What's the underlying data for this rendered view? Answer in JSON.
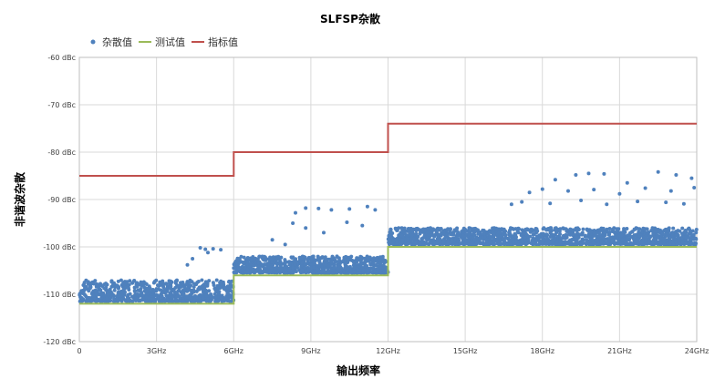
{
  "chart_data": {
    "type": "scatter",
    "title": "SLFSP杂散",
    "xlabel": "输出频率",
    "ylabel": "非谐波杂散",
    "xlim": [
      0,
      24
    ],
    "ylim": [
      -120,
      -60
    ],
    "x_ticks": [
      0,
      3,
      6,
      9,
      12,
      15,
      18,
      21,
      24
    ],
    "x_tick_labels": [
      "0",
      "3GHz",
      "6GHz",
      "9GHz",
      "12GHz",
      "15GHz",
      "18GHz",
      "21GHz",
      "24GHz"
    ],
    "y_ticks": [
      -60,
      -70,
      -80,
      -90,
      -100,
      -110,
      -120
    ],
    "y_tick_labels": [
      "-60 dBc",
      "-70 dBc",
      "-80 dBc",
      "-90 dBc",
      "-100 dBc",
      "-110 dBc",
      "-120 dBc"
    ],
    "grid": true,
    "legend_position": "top-left",
    "series": [
      {
        "name": "杂散值",
        "kind": "scatter",
        "color": "#4f81bd",
        "bands": [
          {
            "x_range": [
              0,
              6
            ],
            "floor": -111.5,
            "ceiling": -107.0
          },
          {
            "x_range": [
              6,
              12
            ],
            "floor": -105.5,
            "ceiling": -102.0
          },
          {
            "x_range": [
              12,
              24
            ],
            "floor": -99.5,
            "ceiling": -96.0
          }
        ],
        "outliers": [
          [
            4.7,
            -100.2
          ],
          [
            4.9,
            -100.5
          ],
          [
            5.2,
            -100.4
          ],
          [
            5.5,
            -100.6
          ],
          [
            5.0,
            -101.2
          ],
          [
            4.4,
            -102.5
          ],
          [
            4.2,
            -103.8
          ],
          [
            8.4,
            -92.8
          ],
          [
            8.8,
            -91.8
          ],
          [
            9.3,
            -91.9
          ],
          [
            9.8,
            -92.2
          ],
          [
            10.5,
            -92.0
          ],
          [
            11.2,
            -91.5
          ],
          [
            11.5,
            -92.2
          ],
          [
            8.3,
            -95.0
          ],
          [
            8.8,
            -96.0
          ],
          [
            9.5,
            -97.0
          ],
          [
            10.4,
            -94.8
          ],
          [
            11.0,
            -95.5
          ],
          [
            7.5,
            -98.5
          ],
          [
            8.0,
            -99.5
          ],
          [
            18.5,
            -85.8
          ],
          [
            19.3,
            -84.8
          ],
          [
            19.8,
            -84.5
          ],
          [
            20.4,
            -84.6
          ],
          [
            21.3,
            -86.5
          ],
          [
            22.5,
            -84.2
          ],
          [
            23.2,
            -84.8
          ],
          [
            23.8,
            -85.5
          ],
          [
            17.5,
            -88.5
          ],
          [
            18.0,
            -87.8
          ],
          [
            19.0,
            -88.2
          ],
          [
            20.0,
            -87.9
          ],
          [
            21.0,
            -88.8
          ],
          [
            22.0,
            -87.6
          ],
          [
            23.0,
            -88.2
          ],
          [
            23.9,
            -87.5
          ],
          [
            16.8,
            -91.0
          ],
          [
            17.2,
            -90.5
          ],
          [
            18.3,
            -90.8
          ],
          [
            19.5,
            -90.2
          ],
          [
            20.5,
            -91.0
          ],
          [
            21.7,
            -90.4
          ],
          [
            22.8,
            -90.6
          ],
          [
            23.5,
            -90.9
          ]
        ]
      },
      {
        "name": "测试值",
        "kind": "line",
        "color": "#9bbb59",
        "x": [
          0,
          6,
          6,
          12,
          12,
          24
        ],
        "y": [
          -112,
          -112,
          -106,
          -106,
          -100,
          -100
        ]
      },
      {
        "name": "指标值",
        "kind": "line",
        "color": "#c0504d",
        "x": [
          0,
          6,
          6,
          12,
          12,
          24
        ],
        "y": [
          -85,
          -85,
          -80,
          -80,
          -74,
          -74
        ]
      }
    ]
  }
}
